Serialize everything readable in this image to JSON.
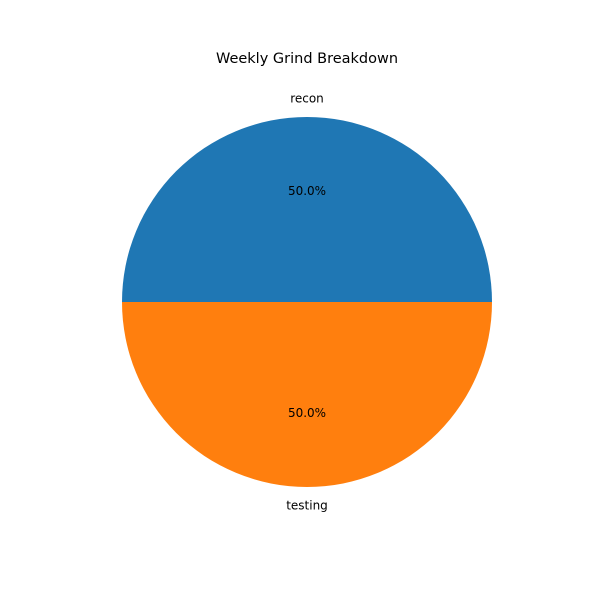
{
  "chart_data": {
    "type": "pie",
    "title": "Weekly Grind Breakdown",
    "categories": [
      "recon",
      "testing"
    ],
    "values": [
      50,
      50
    ],
    "percent_labels": [
      "50.0%",
      "50.0%"
    ],
    "colors": [
      "#1f77b4",
      "#ff7f0e"
    ],
    "start_angle_deg": 0,
    "direction": "counterclockwise",
    "legend": "none"
  }
}
